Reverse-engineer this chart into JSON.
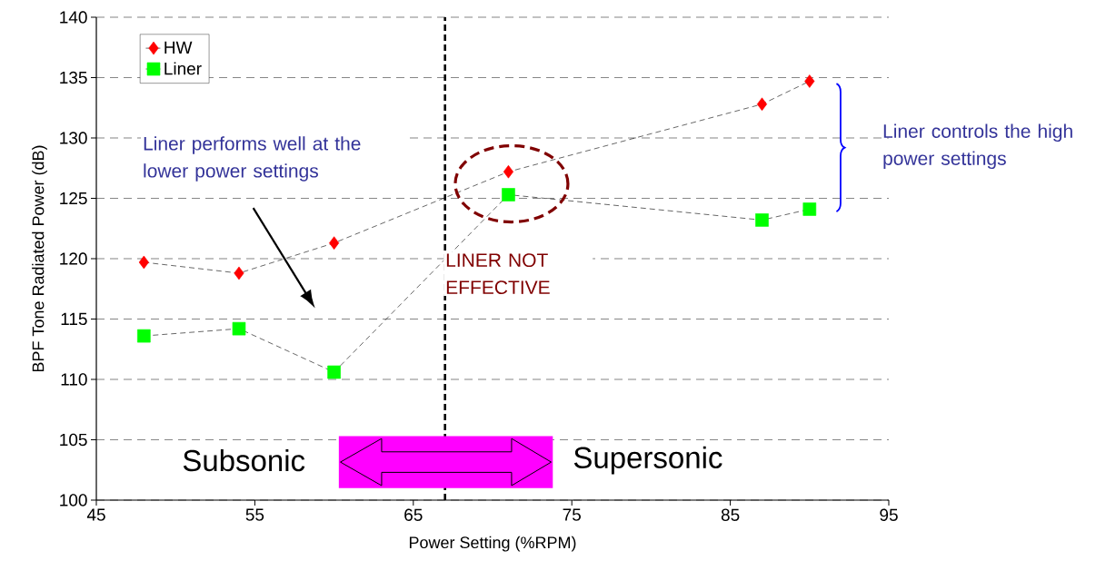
{
  "chart_data": {
    "type": "line",
    "xlabel": "Power Setting (%RPM)",
    "ylabel": "BPF Tone Radiated Power (dB)",
    "x": [
      48,
      54,
      60,
      71,
      87,
      90
    ],
    "series": [
      {
        "name": "HW",
        "color": "#ff0000",
        "marker": "diamond",
        "values": [
          119.7,
          118.8,
          121.3,
          127.2,
          132.8,
          134.7
        ]
      },
      {
        "name": "Liner",
        "color": "#00ff00",
        "marker": "square",
        "values": [
          113.6,
          114.2,
          110.6,
          125.3,
          123.2,
          124.1
        ]
      }
    ],
    "xlim": [
      45,
      95
    ],
    "xticks": [
      45,
      55,
      65,
      75,
      85,
      95
    ],
    "ylim": [
      100,
      140
    ],
    "yticks": [
      100,
      105,
      110,
      115,
      120,
      125,
      130,
      135,
      140
    ],
    "grid": "y",
    "legend": "top left",
    "line_style": "dashed",
    "ref_lines": [
      {
        "axis": "x",
        "value": 67,
        "color": "#000000",
        "line_style": "dashed"
      }
    ],
    "annotations": [
      "Liner performs well at the lower power settings",
      "LINER NOT EFFECTIVE",
      "Liner controls the high power settings",
      "Subsonic",
      "Supersonic"
    ]
  }
}
